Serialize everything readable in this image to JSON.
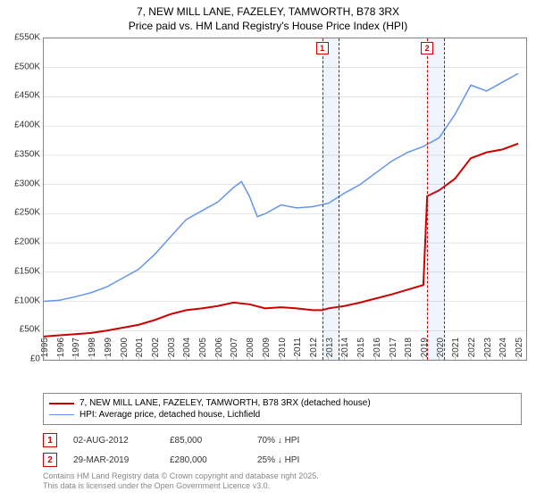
{
  "title": {
    "line1": "7, NEW MILL LANE, FAZELEY, TAMWORTH, B78 3RX",
    "line2": "Price paid vs. HM Land Registry's House Price Index (HPI)",
    "fontsize": 12,
    "color": "#222222"
  },
  "chart": {
    "type": "line",
    "background_color": "#ffffff",
    "grid_color": "#cccccc",
    "axis_color": "#888888",
    "xlim": [
      1995,
      2025.5
    ],
    "ylim": [
      0,
      550000
    ],
    "ytick_step": 50000,
    "ytick_labels": [
      "£0",
      "£50K",
      "£100K",
      "£150K",
      "£200K",
      "£250K",
      "£300K",
      "£350K",
      "£400K",
      "£450K",
      "£500K",
      "£550K"
    ],
    "xtick_step": 1,
    "xtick_labels": [
      "1995",
      "1996",
      "1997",
      "1998",
      "1999",
      "2000",
      "2001",
      "2002",
      "2003",
      "2004",
      "2005",
      "2006",
      "2007",
      "2008",
      "2009",
      "2010",
      "2011",
      "2012",
      "2013",
      "2014",
      "2015",
      "2016",
      "2017",
      "2018",
      "2019",
      "2020",
      "2021",
      "2022",
      "2023",
      "2024",
      "2025"
    ],
    "series": [
      {
        "name": "price_paid",
        "label": "7, NEW MILL LANE, FAZELEY, TAMWORTH, B78 3RX (detached house)",
        "color": "#cc0000",
        "line_width": 2,
        "data": [
          [
            1995,
            40000
          ],
          [
            1996,
            42000
          ],
          [
            1997,
            44000
          ],
          [
            1998,
            46000
          ],
          [
            1999,
            50000
          ],
          [
            2000,
            55000
          ],
          [
            2001,
            60000
          ],
          [
            2002,
            68000
          ],
          [
            2003,
            78000
          ],
          [
            2004,
            85000
          ],
          [
            2005,
            88000
          ],
          [
            2006,
            92000
          ],
          [
            2007,
            98000
          ],
          [
            2008,
            95000
          ],
          [
            2009,
            88000
          ],
          [
            2010,
            90000
          ],
          [
            2011,
            88000
          ],
          [
            2012,
            85000
          ],
          [
            2012.6,
            85000
          ],
          [
            2013,
            88000
          ],
          [
            2014,
            92000
          ],
          [
            2015,
            98000
          ],
          [
            2016,
            105000
          ],
          [
            2017,
            112000
          ],
          [
            2018,
            120000
          ],
          [
            2019,
            128000
          ],
          [
            2019.24,
            280000
          ],
          [
            2020,
            290000
          ],
          [
            2021,
            310000
          ],
          [
            2022,
            345000
          ],
          [
            2023,
            355000
          ],
          [
            2024,
            360000
          ],
          [
            2025,
            370000
          ]
        ]
      },
      {
        "name": "hpi",
        "label": "HPI: Average price, detached house, Lichfield",
        "color": "#6495ed",
        "line_width": 1.5,
        "data": [
          [
            1995,
            100000
          ],
          [
            1996,
            102000
          ],
          [
            1997,
            108000
          ],
          [
            1998,
            115000
          ],
          [
            1999,
            125000
          ],
          [
            2000,
            140000
          ],
          [
            2001,
            155000
          ],
          [
            2002,
            180000
          ],
          [
            2003,
            210000
          ],
          [
            2004,
            240000
          ],
          [
            2005,
            255000
          ],
          [
            2006,
            270000
          ],
          [
            2007,
            295000
          ],
          [
            2007.5,
            305000
          ],
          [
            2008,
            280000
          ],
          [
            2008.5,
            245000
          ],
          [
            2009,
            250000
          ],
          [
            2010,
            265000
          ],
          [
            2011,
            260000
          ],
          [
            2012,
            262000
          ],
          [
            2013,
            268000
          ],
          [
            2014,
            285000
          ],
          [
            2015,
            300000
          ],
          [
            2016,
            320000
          ],
          [
            2017,
            340000
          ],
          [
            2018,
            355000
          ],
          [
            2019,
            365000
          ],
          [
            2020,
            380000
          ],
          [
            2021,
            420000
          ],
          [
            2022,
            470000
          ],
          [
            2023,
            460000
          ],
          [
            2024,
            475000
          ],
          [
            2025,
            490000
          ]
        ]
      }
    ],
    "shaded_bands": [
      {
        "x_start": 2012.6,
        "x_end": 2013.6,
        "color": "#6495ed",
        "opacity": 0.1,
        "border_color": "#cc0000"
      },
      {
        "x_start": 2019.24,
        "x_end": 2020.24,
        "color": "#6495ed",
        "opacity": 0.1,
        "border_color": "#cc0000"
      }
    ],
    "sale_markers": [
      {
        "num": "1",
        "x": 2012.6,
        "border_color": "#cc0000",
        "text_color": "#cc0000"
      },
      {
        "num": "2",
        "x": 2019.24,
        "border_color": "#cc0000",
        "text_color": "#cc0000"
      }
    ]
  },
  "legend": {
    "border_color": "#888888",
    "fontsize": 10,
    "items": [
      {
        "color": "#cc0000",
        "width": 2,
        "label": "7, NEW MILL LANE, FAZELEY, TAMWORTH, B78 3RX (detached house)"
      },
      {
        "color": "#6495ed",
        "width": 1.5,
        "label": "HPI: Average price, detached house, Lichfield"
      }
    ]
  },
  "sales": [
    {
      "num": "1",
      "date": "02-AUG-2012",
      "price": "£85,000",
      "delta": "70% ↓ HPI",
      "border_color": "#cc0000",
      "text_color": "#cc0000"
    },
    {
      "num": "2",
      "date": "29-MAR-2019",
      "price": "£280,000",
      "delta": "25% ↓ HPI",
      "border_color": "#cc0000",
      "text_color": "#cc0000"
    }
  ],
  "footer": {
    "line1": "Contains HM Land Registry data © Crown copyright and database right 2025.",
    "line2": "This data is licensed under the Open Government Licence v3.0.",
    "color": "#888888",
    "fontsize": 9
  }
}
